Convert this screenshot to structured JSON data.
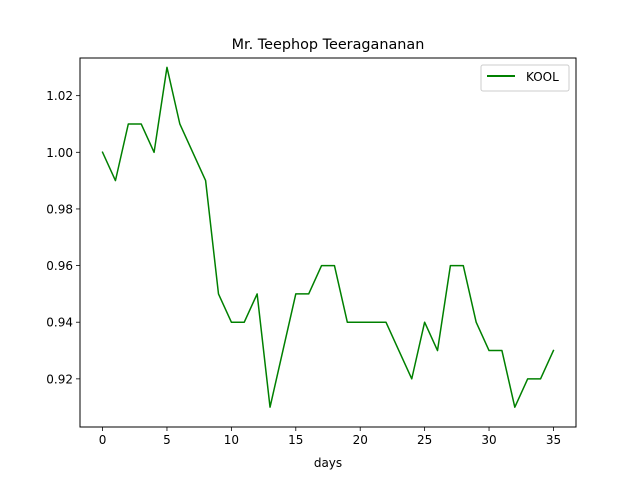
{
  "chart_data": {
    "type": "line",
    "title": "Mr. Teephop Teeragananan",
    "xlabel": "days",
    "ylabel": "",
    "xlim": [
      -1.75,
      36.75
    ],
    "ylim": [
      0.903,
      1.0333
    ],
    "xticks": [
      0,
      5,
      10,
      15,
      20,
      25,
      30,
      35
    ],
    "xtick_labels": [
      "0",
      "5",
      "10",
      "15",
      "20",
      "25",
      "30",
      "35"
    ],
    "yticks": [
      0.92,
      0.94,
      0.96,
      0.98,
      1.0,
      1.02
    ],
    "ytick_labels": [
      "0.92",
      "0.94",
      "0.96",
      "0.98",
      "1.00",
      "1.02"
    ],
    "grid": false,
    "legend_position": "top-right",
    "series": [
      {
        "name": "KOOL",
        "color": "#008000",
        "x": [
          0,
          1,
          2,
          3,
          4,
          5,
          6,
          7,
          8,
          9,
          10,
          11,
          12,
          13,
          14,
          15,
          16,
          17,
          18,
          19,
          20,
          21,
          22,
          23,
          24,
          25,
          26,
          27,
          28,
          29,
          30,
          31,
          32,
          33,
          34,
          35
        ],
        "values": [
          1.0,
          0.99,
          1.01,
          1.01,
          1.0,
          1.03,
          1.01,
          1.0,
          0.99,
          0.95,
          0.94,
          0.94,
          0.95,
          0.91,
          0.93,
          0.95,
          0.95,
          0.96,
          0.96,
          0.94,
          0.94,
          0.94,
          0.94,
          0.93,
          0.92,
          0.94,
          0.93,
          0.96,
          0.96,
          0.94,
          0.93,
          0.93,
          0.91,
          0.92,
          0.92,
          0.93
        ]
      }
    ]
  }
}
